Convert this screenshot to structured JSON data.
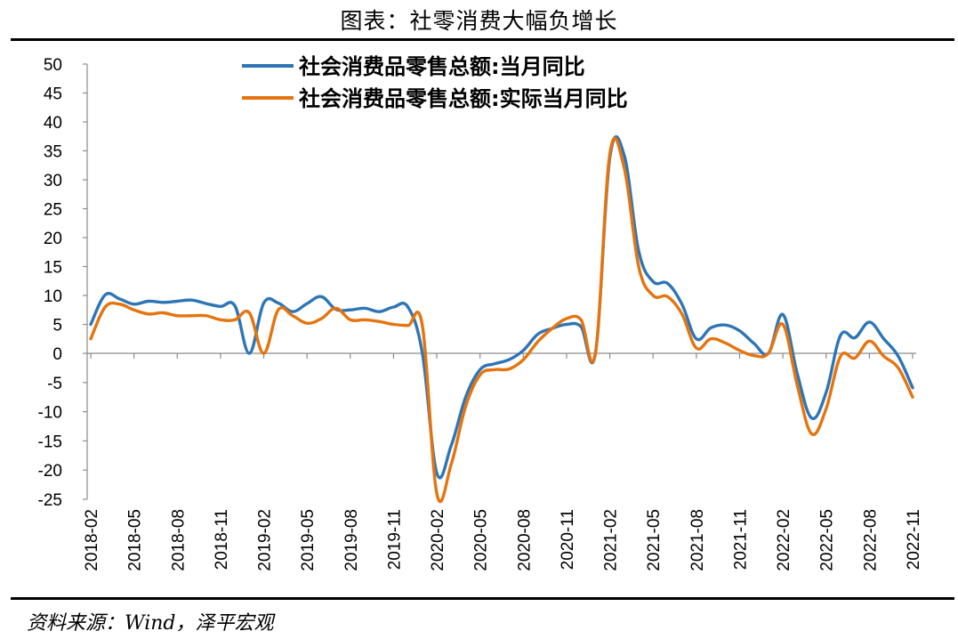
{
  "figure": {
    "title": "图表：社零消费大幅负增长",
    "source": "资料来源：Wind，泽平宏观"
  },
  "chart_data": {
    "type": "line",
    "title": "图表：社零消费大幅负增长",
    "xlabel": "",
    "ylabel": "",
    "ylim": [
      -25,
      50
    ],
    "yticks": [
      50,
      45,
      40,
      35,
      30,
      25,
      20,
      15,
      10,
      5,
      0,
      -5,
      -10,
      -15,
      -20,
      -25
    ],
    "x": [
      "2018-02",
      "2018-03",
      "2018-04",
      "2018-05",
      "2018-06",
      "2018-07",
      "2018-08",
      "2018-09",
      "2018-10",
      "2018-11",
      "2018-12",
      "2019-01",
      "2019-02",
      "2019-03",
      "2019-04",
      "2019-05",
      "2019-06",
      "2019-07",
      "2019-08",
      "2019-09",
      "2019-10",
      "2019-11",
      "2019-12",
      "2020-01",
      "2020-02",
      "2020-03",
      "2020-04",
      "2020-05",
      "2020-06",
      "2020-07",
      "2020-08",
      "2020-09",
      "2020-10",
      "2020-11",
      "2020-12",
      "2021-01",
      "2021-02",
      "2021-03",
      "2021-04",
      "2021-05",
      "2021-06",
      "2021-07",
      "2021-08",
      "2021-09",
      "2021-10",
      "2021-11",
      "2021-12",
      "2022-01",
      "2022-02",
      "2022-03",
      "2022-04",
      "2022-05",
      "2022-06",
      "2022-07",
      "2022-08",
      "2022-09",
      "2022-10",
      "2022-11"
    ],
    "xtick_labels": [
      "2018-02",
      "2018-05",
      "2018-08",
      "2018-11",
      "2019-02",
      "2019-05",
      "2019-08",
      "2019-11",
      "2020-02",
      "2020-05",
      "2020-08",
      "2020-11",
      "2021-02",
      "2021-05",
      "2021-08",
      "2021-11",
      "2022-02",
      "2022-05",
      "2022-08",
      "2022-11"
    ],
    "grid": false,
    "legend_position": "top",
    "series": [
      {
        "name": "社会消费品零售总额:当月同比",
        "color": "#2e75b6",
        "values": [
          5.0,
          10.1,
          9.4,
          8.5,
          9.0,
          8.8,
          9.0,
          9.2,
          8.6,
          8.1,
          8.2,
          0.0,
          8.7,
          8.7,
          7.2,
          8.6,
          9.8,
          7.6,
          7.5,
          7.8,
          7.2,
          8.0,
          8.0,
          0.0,
          -20.5,
          -15.8,
          -7.5,
          -2.8,
          -1.8,
          -1.1,
          0.5,
          3.3,
          4.3,
          5.0,
          4.6,
          0.0,
          33.8,
          34.2,
          17.7,
          12.4,
          12.1,
          8.5,
          2.5,
          4.4,
          4.9,
          3.9,
          1.7,
          0.0,
          6.7,
          -3.5,
          -11.1,
          -6.7,
          3.1,
          2.7,
          5.4,
          2.5,
          -0.5,
          -5.9
        ]
      },
      {
        "name": "社会消费品零售总额:实际当月同比",
        "color": "#e5740e",
        "values": [
          2.5,
          8.0,
          8.5,
          7.5,
          6.8,
          7.0,
          6.5,
          6.5,
          6.5,
          5.8,
          5.8,
          7.0,
          0.0,
          7.5,
          6.5,
          5.2,
          6.0,
          7.8,
          5.8,
          5.8,
          5.5,
          5.0,
          4.8,
          4.8,
          -24.0,
          -19.0,
          -9.1,
          -3.7,
          -2.8,
          -2.7,
          -1.1,
          2.0,
          4.3,
          6.0,
          5.8,
          0.0,
          34.5,
          32.0,
          15.0,
          10.0,
          9.8,
          6.8,
          0.9,
          2.5,
          1.8,
          0.5,
          -0.4,
          0.0,
          5.0,
          -5.5,
          -13.8,
          -9.5,
          -0.5,
          -0.8,
          2.1,
          -0.5,
          -2.5,
          -7.5
        ]
      }
    ]
  }
}
